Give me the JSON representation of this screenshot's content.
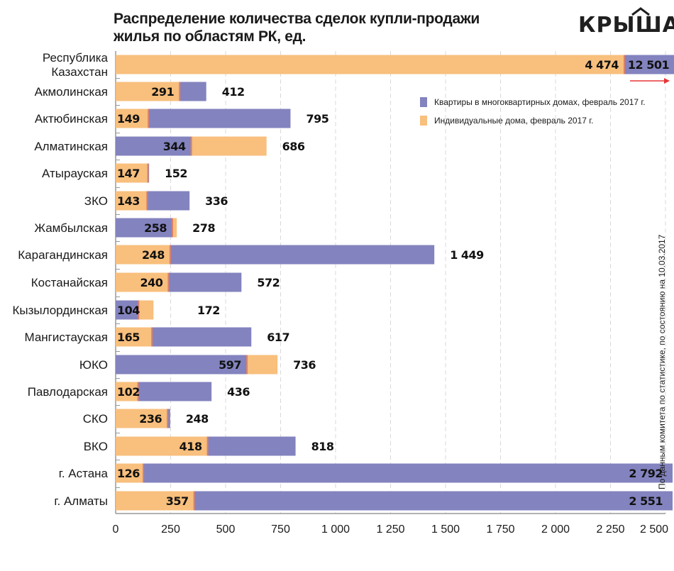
{
  "title_line1": "Распределение количества сделок купли-продажи",
  "title_line2": "жилья по областям РК, ед.",
  "logo": {
    "text": "КРЫША",
    "icon": "roof-icon"
  },
  "side_note": "По данным комитета по статистике, по состоянию на 10.03.2017",
  "colors": {
    "apartments": "#8383bf",
    "houses": "#f8bf7d",
    "separator": "#d9826a",
    "arrow": "#e83535",
    "grid": "#d9d9d9",
    "axis": "#999999"
  },
  "legend": [
    {
      "label": "Квартиры в многоквартирных домах, февраль 2017 г.",
      "series": "apartments"
    },
    {
      "label": "Индивидуальные дома, февраль 2017 г.",
      "series": "houses"
    }
  ],
  "chart_data": {
    "type": "bar",
    "orientation": "horizontal",
    "layout": "overlapping",
    "title": "Распределение количества сделок купли-продажи жилья по областям РК, ед.",
    "xlabel": "",
    "ylabel": "",
    "xlim": [
      0,
      2500
    ],
    "xticks": [
      0,
      250,
      500,
      750,
      1000,
      1250,
      1500,
      1750,
      2000,
      2250,
      2500
    ],
    "xtick_labels": [
      "0",
      "250",
      "500",
      "750",
      "1 000",
      "1 250",
      "1 500",
      "1 750",
      "2 000",
      "2 250",
      "2 500"
    ],
    "grid": true,
    "legend_position": "top-right",
    "categories": [
      "Республика Казахстан",
      "Акмолинская",
      "Актюбинская",
      "Алматинская",
      "Атырауская",
      "ЗКО",
      "Жамбылская",
      "Карагандинская",
      "Костанайская",
      "Кызылординская",
      "Мангистауская",
      "ЮКО",
      "Павлодарская",
      "СКО",
      "ВКО",
      "г. Астана",
      "г. Алматы"
    ],
    "category_display": [
      [
        "Республика",
        "Казахстан"
      ],
      [
        "Акмолинская"
      ],
      [
        "Актюбинская"
      ],
      [
        "Алматинская"
      ],
      [
        "Атырауская"
      ],
      [
        "ЗКО"
      ],
      [
        "Жамбылская"
      ],
      [
        "Карагандинская"
      ],
      [
        "Костанайская"
      ],
      [
        "Кызылординская"
      ],
      [
        "Мангистауская"
      ],
      [
        "ЮКО"
      ],
      [
        "Павлодарская"
      ],
      [
        "СКО"
      ],
      [
        "ВКО"
      ],
      [
        "г. Астана"
      ],
      [
        "г. Алматы"
      ]
    ],
    "series": [
      {
        "name": "Квартиры в многоквартирных домах, февраль 2017 г.",
        "key": "apartments",
        "values": [
          12501,
          412,
          795,
          344,
          152,
          336,
          258,
          1449,
          572,
          104,
          617,
          597,
          436,
          248,
          818,
          2792,
          2551
        ],
        "labels": [
          "12 501",
          "412",
          "795",
          "344",
          "152",
          "336",
          "258",
          "1 449",
          "572",
          "104",
          "617",
          "597",
          "436",
          "248",
          "818",
          "2 792",
          "2 551"
        ]
      },
      {
        "name": "Индивидуальные дома, февраль 2017 г.",
        "key": "houses",
        "values": [
          4474,
          291,
          149,
          686,
          147,
          143,
          278,
          248,
          240,
          172,
          165,
          736,
          102,
          236,
          418,
          126,
          357
        ],
        "labels": [
          "4 474",
          "291",
          "149",
          "686",
          "147",
          "143",
          "278",
          "248",
          "240",
          "172",
          "165",
          "736",
          "102",
          "236",
          "418",
          "126",
          "357"
        ]
      }
    ],
    "annotations": [
      "Значение Республики Казахстан выходит за пределы шкалы (стрелка вправо)"
    ]
  }
}
